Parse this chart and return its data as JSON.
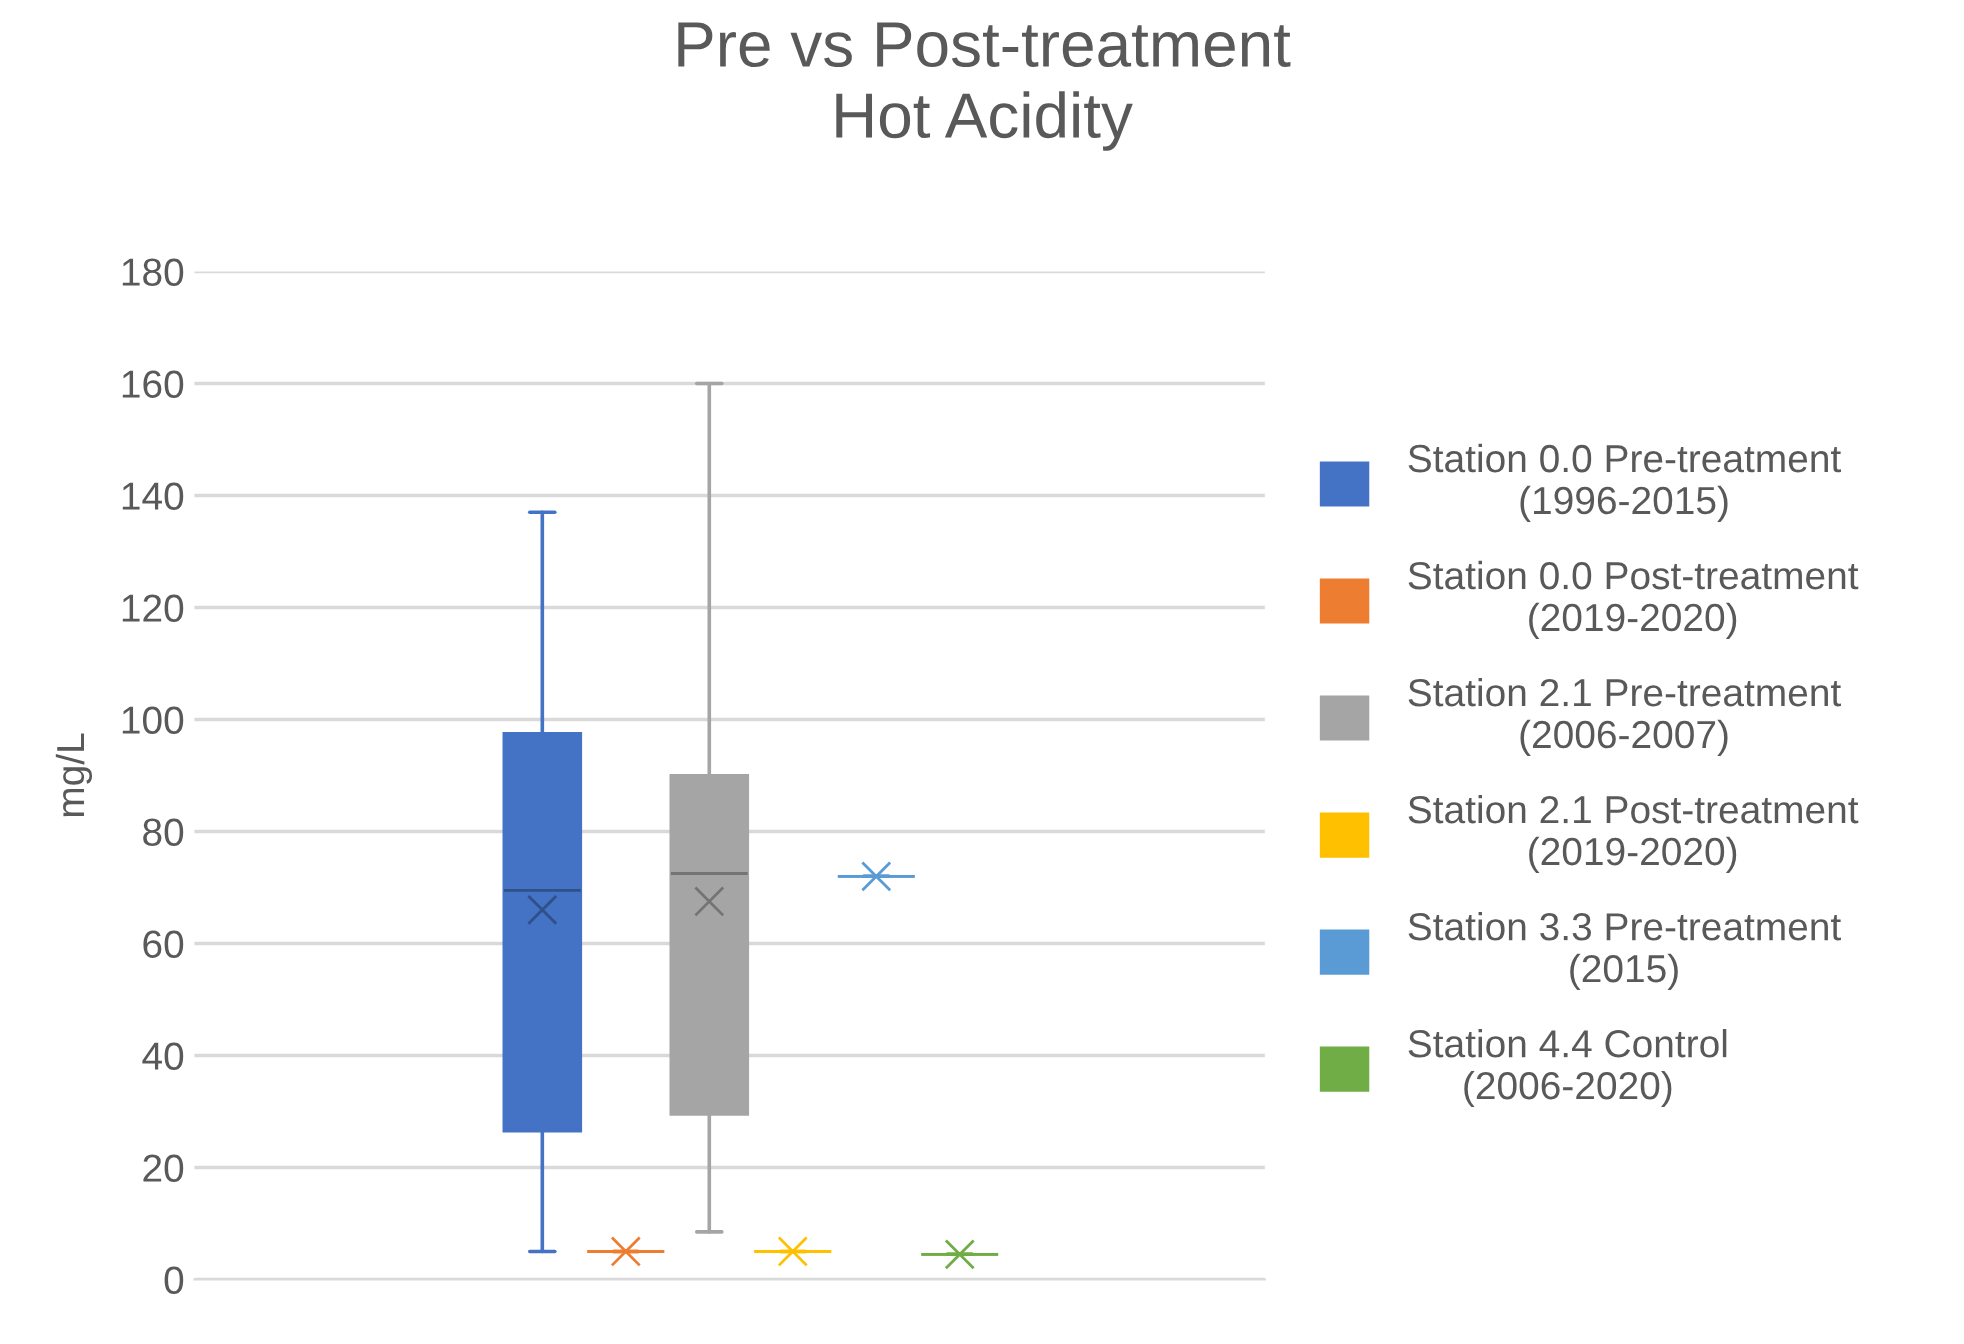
{
  "chart_data": {
    "type": "box",
    "title": "Pre vs Post-treatment\nHot Acidity",
    "ylabel": "mg/L",
    "categories": [
      null
    ],
    "series": [
      {
        "name": "Station 0.0 Pre-treatment\n(1996-2015)",
        "color": "#4472c4",
        "boxes": [
          {
            "low": 5,
            "q1": 26.5,
            "median": 69.5,
            "q3": 97.5,
            "high": 137,
            "mean": 66
          }
        ]
      },
      {
        "name": "Station 0.0 Post-treatment\n(2019-2020)",
        "color": "#ed7d31",
        "boxes": [
          {
            "low": 5,
            "q1": 5,
            "median": 5,
            "q3": 5,
            "high": 5,
            "mean": 5
          }
        ]
      },
      {
        "name": "Station 2.1 Pre-treatment\n(2006-2007)",
        "color": "#a5a5a5",
        "boxes": [
          {
            "low": 8.5,
            "q1": 29.5,
            "median": 72.5,
            "q3": 90,
            "high": 160,
            "mean": 67.5
          }
        ]
      },
      {
        "name": "Station 2.1 Post-treatment\n(2019-2020)",
        "color": "#ffc000",
        "boxes": [
          {
            "low": 5,
            "q1": 5,
            "median": 5,
            "q3": 5,
            "high": 5,
            "mean": 5
          }
        ]
      },
      {
        "name": "Station 3.3 Pre-treatment\n(2015)",
        "color": "#5b9bd5",
        "boxes": [
          {
            "low": 72,
            "q1": 72,
            "median": 72,
            "q3": 72,
            "high": 72,
            "mean": 72
          }
        ]
      },
      {
        "name": "Station 4.4 Control\n(2006-2020)",
        "color": "#70ad47",
        "boxes": [
          {
            "low": 4.5,
            "q1": 4.5,
            "median": 4.5,
            "q3": 4.5,
            "high": 4.5,
            "mean": 4.5
          }
        ]
      }
    ],
    "ylim": [
      0,
      180
    ],
    "yticks": [
      0,
      20,
      40,
      60,
      80,
      100,
      120,
      140,
      160,
      180
    ],
    "grid": "y",
    "legend": "right",
    "marker": "cross"
  }
}
